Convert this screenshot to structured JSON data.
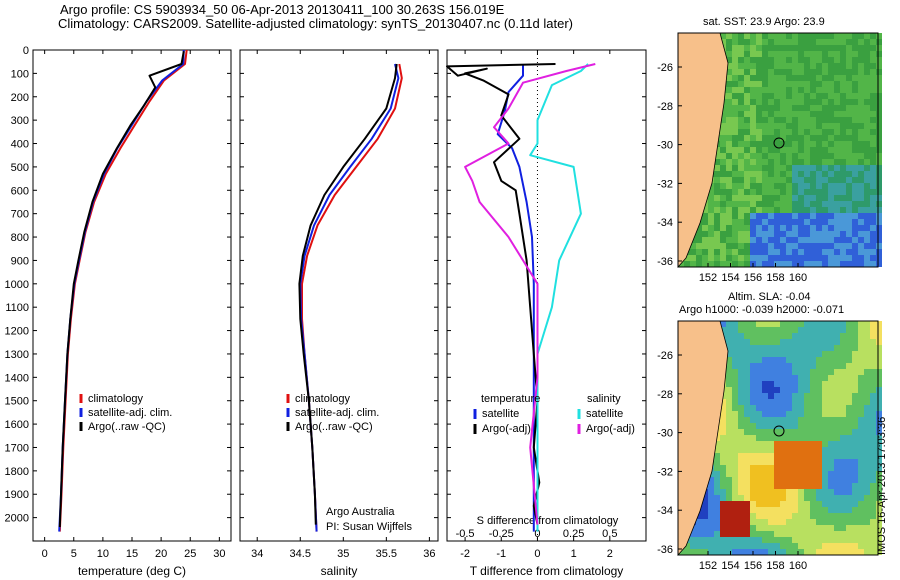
{
  "header": {
    "line1": "Argo profile: CS 5903934_50 06-Apr-2013 20130411_100 30.263S 156.019E",
    "line2": "Climatology: CARS2009. Satellite-adjusted climatology: synTS_20130407.nc (0.11d later)"
  },
  "colors": {
    "climatology": "#e01010",
    "satellite": "#1020e0",
    "argo": "#000000",
    "satellite_s": "#20e0e0",
    "argo_s": "#e020e0",
    "land": "#f7c08a"
  },
  "chart_data": [
    {
      "type": "line",
      "name": "temperature",
      "xlabel": "temperature (deg C)",
      "ylabel": "",
      "xlim": [
        -2,
        32
      ],
      "ylim": [
        2100,
        0
      ],
      "xticks": [
        0,
        5,
        10,
        15,
        20,
        25,
        30
      ],
      "yticks": [
        0,
        100,
        200,
        300,
        400,
        500,
        600,
        700,
        800,
        900,
        1000,
        1100,
        1200,
        1300,
        1400,
        1500,
        1600,
        1700,
        1800,
        1900,
        2000
      ],
      "legend": [
        "climatology",
        "satellite-adj. clim.",
        "Argo(..raw -QC)"
      ],
      "series": [
        {
          "name": "climatology",
          "points": [
            [
              24.4,
              0
            ],
            [
              24.1,
              60
            ],
            [
              20.5,
              130
            ],
            [
              18,
              220
            ],
            [
              15.5,
              320
            ],
            [
              13,
              420
            ],
            [
              10.5,
              530
            ],
            [
              8.5,
              650
            ],
            [
              7,
              780
            ],
            [
              6,
              900
            ],
            [
              5.2,
              1000
            ],
            [
              4.5,
              1150
            ],
            [
              4,
              1300
            ],
            [
              3.6,
              1500
            ],
            [
              3.2,
              1700
            ],
            [
              2.9,
              1900
            ],
            [
              2.6,
              2060
            ]
          ]
        },
        {
          "name": "satellite-adj. clim.",
          "points": [
            [
              23.9,
              0
            ],
            [
              23.8,
              60
            ],
            [
              20.2,
              130
            ],
            [
              17.5,
              220
            ],
            [
              15,
              320
            ],
            [
              12.5,
              420
            ],
            [
              10.2,
              530
            ],
            [
              8.3,
              650
            ],
            [
              6.9,
              780
            ],
            [
              5.9,
              900
            ],
            [
              5.1,
              1000
            ],
            [
              4.4,
              1150
            ],
            [
              3.9,
              1300
            ],
            [
              3.5,
              1500
            ],
            [
              3.1,
              1700
            ],
            [
              2.8,
              1900
            ],
            [
              2.5,
              2060
            ]
          ]
        },
        {
          "name": "Argo(..raw -QC)",
          "points": [
            [
              23.9,
              5
            ],
            [
              23.5,
              60
            ],
            [
              18,
              110
            ],
            [
              19,
              160
            ],
            [
              17,
              240
            ],
            [
              14.8,
              320
            ],
            [
              12.4,
              420
            ],
            [
              10,
              530
            ],
            [
              8.2,
              650
            ],
            [
              6.8,
              780
            ],
            [
              5.8,
              900
            ],
            [
              5,
              1000
            ],
            [
              4.4,
              1150
            ],
            [
              3.9,
              1300
            ],
            [
              3.5,
              1500
            ],
            [
              3.1,
              1700
            ],
            [
              2.8,
              1900
            ],
            [
              2.6,
              2040
            ]
          ]
        }
      ]
    },
    {
      "type": "line",
      "name": "salinity",
      "xlabel": "salinity",
      "xlim": [
        33.8,
        36.1
      ],
      "ylim": [
        2100,
        0
      ],
      "xticks": [
        34,
        34.5,
        35,
        35.5,
        36
      ],
      "xticklabels": [
        "34",
        "34.5",
        "35",
        "35.5",
        "36"
      ],
      "legend": [
        "climatology",
        "satellite-adj. clim.",
        "Argo(..raw -QC)"
      ],
      "series": [
        {
          "name": "climatology",
          "points": [
            [
              35.65,
              60
            ],
            [
              35.68,
              120
            ],
            [
              35.6,
              250
            ],
            [
              35.4,
              380
            ],
            [
              35.15,
              500
            ],
            [
              34.9,
              620
            ],
            [
              34.7,
              750
            ],
            [
              34.58,
              880
            ],
            [
              34.52,
              1000
            ],
            [
              34.52,
              1150
            ],
            [
              34.55,
              1300
            ],
            [
              34.6,
              1500
            ],
            [
              34.64,
              1700
            ],
            [
              34.67,
              1900
            ],
            [
              34.69,
              2060
            ]
          ]
        },
        {
          "name": "satellite-adj. clim.",
          "points": [
            [
              35.6,
              60
            ],
            [
              35.64,
              120
            ],
            [
              35.55,
              250
            ],
            [
              35.33,
              380
            ],
            [
              35.08,
              500
            ],
            [
              34.84,
              620
            ],
            [
              34.66,
              750
            ],
            [
              34.55,
              880
            ],
            [
              34.5,
              1000
            ],
            [
              34.51,
              1150
            ],
            [
              34.55,
              1300
            ],
            [
              34.6,
              1500
            ],
            [
              34.64,
              1700
            ],
            [
              34.67,
              1900
            ],
            [
              34.69,
              2060
            ]
          ]
        },
        {
          "name": "Argo(..raw -QC)",
          "points": [
            [
              35.62,
              60
            ],
            [
              35.6,
              120
            ],
            [
              35.5,
              250
            ],
            [
              35.25,
              380
            ],
            [
              35.0,
              500
            ],
            [
              34.78,
              620
            ],
            [
              34.62,
              750
            ],
            [
              34.53,
              880
            ],
            [
              34.49,
              1000
            ],
            [
              34.5,
              1150
            ],
            [
              34.54,
              1300
            ],
            [
              34.6,
              1500
            ],
            [
              34.64,
              1700
            ],
            [
              34.67,
              1900
            ],
            [
              34.68,
              2030
            ]
          ]
        }
      ],
      "annotation": [
        "Argo Australia",
        "PI: Susan Wijffels"
      ]
    },
    {
      "type": "line",
      "name": "differences",
      "xlabel": "T difference from climatology",
      "xlabel_top": "S difference from climatology",
      "xlim": [
        -2.5,
        3
      ],
      "ylim": [
        2100,
        0
      ],
      "xticks": [
        -2,
        -1,
        0,
        1,
        2
      ],
      "sticks": [
        -0.5,
        -0.25,
        0,
        0.25,
        0.5
      ],
      "stick_labels": [
        "-0.5",
        "-0.25",
        "0",
        "0.25",
        "0.5"
      ],
      "legend_temperature": [
        "temperature",
        "satellite",
        "Argo(-adj)"
      ],
      "legend_salinity": [
        "salinity",
        "satellite",
        "Argo(-adj)"
      ],
      "series": [
        {
          "name": "T satellite",
          "points": [
            [
              -0.4,
              60
            ],
            [
              -0.4,
              110
            ],
            [
              -0.8,
              180
            ],
            [
              -0.9,
              260
            ],
            [
              -1.1,
              360
            ],
            [
              -0.7,
              420
            ],
            [
              -0.5,
              500
            ],
            [
              -0.3,
              650
            ],
            [
              -0.15,
              800
            ],
            [
              -0.1,
              1000
            ],
            [
              -0.1,
              1300
            ],
            [
              -0.1,
              1600
            ],
            [
              -0.1,
              1900
            ],
            [
              -0.1,
              2060
            ]
          ]
        },
        {
          "name": "T Argo(-adj)",
          "points": [
            [
              0.5,
              60
            ],
            [
              -2.5,
              70
            ],
            [
              -2.2,
              110
            ],
            [
              -1.4,
              80
            ],
            [
              -2.0,
              100
            ],
            [
              -1.5,
              130
            ],
            [
              -0.8,
              190
            ],
            [
              -1.0,
              280
            ],
            [
              -0.5,
              380
            ],
            [
              -1.2,
              480
            ],
            [
              -1.0,
              560
            ],
            [
              -0.6,
              600
            ],
            [
              -0.5,
              700
            ],
            [
              -0.3,
              900
            ],
            [
              -0.2,
              1100
            ],
            [
              -0.1,
              1300
            ],
            [
              0,
              1500
            ],
            [
              -0.1,
              1700
            ],
            [
              0.05,
              1850
            ],
            [
              -0.1,
              1950
            ],
            [
              0,
              2030
            ]
          ]
        },
        {
          "name": "S satellite",
          "points": [
            [
              0.35,
              60
            ],
            [
              0.3,
              90
            ],
            [
              0.1,
              150
            ],
            [
              0.0,
              300
            ],
            [
              0.0,
              400
            ],
            [
              -0.05,
              450
            ],
            [
              0.25,
              500
            ],
            [
              0.3,
              700
            ],
            [
              0.15,
              900
            ],
            [
              0.1,
              1100
            ],
            [
              0.0,
              1300
            ],
            [
              0.0,
              1600
            ],
            [
              0.0,
              1900
            ],
            [
              0.0,
              2060
            ]
          ]
        },
        {
          "name": "S Argo(-adj)",
          "points": [
            [
              0.4,
              60
            ],
            [
              0.2,
              90
            ],
            [
              -0.1,
              140
            ],
            [
              -0.2,
              250
            ],
            [
              -0.3,
              330
            ],
            [
              -0.2,
              400
            ],
            [
              -0.5,
              500
            ],
            [
              -0.45,
              560
            ],
            [
              -0.4,
              650
            ],
            [
              -0.2,
              800
            ],
            [
              -0.1,
              900
            ],
            [
              0.0,
              1000
            ],
            [
              0.0,
              1400
            ],
            [
              -0.05,
              1700
            ],
            [
              0.0,
              2030
            ]
          ]
        }
      ]
    }
  ],
  "maps": [
    {
      "title": "sat. SST: 23.9 Argo: 23.9",
      "lon_ticks": [
        "152",
        "154",
        "156",
        "158",
        "160"
      ],
      "lat_ticks": [
        "-26",
        "-28",
        "-30",
        "-32",
        "-34",
        "-36"
      ]
    },
    {
      "title_line1": "Altim. SLA: -0.04",
      "title_line2": "Argo h1000: -0.039 h2000: -0.071",
      "lon_ticks": [
        "152",
        "154",
        "156",
        "158",
        "160"
      ],
      "lat_ticks": [
        "-26",
        "-28",
        "-30",
        "-32",
        "-34",
        "-36"
      ]
    }
  ],
  "watermark": "IMOS 16-Apr-2013 17:03:36"
}
